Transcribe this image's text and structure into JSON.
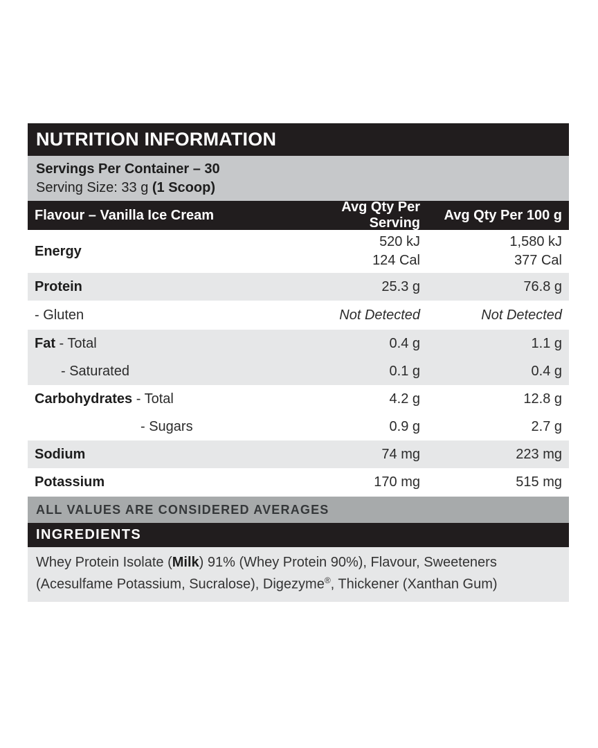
{
  "colors": {
    "bar_black": "#211d1e",
    "servings_gray": "#c6c8ca",
    "row_gray": "#e6e7e8",
    "note_gray": "#a7aaab"
  },
  "label": {
    "title": "NUTRITION INFORMATION",
    "servings_per_container": "Servings Per Container – 30",
    "serving_size_prefix": "Serving Size: 33 g ",
    "serving_size_bold": "(1 Scoop)",
    "columns": {
      "flavour": "Flavour – Vanilla Ice Cream",
      "per_serving": "Avg Qty Per Serving",
      "per_100g": "Avg Qty Per 100 g"
    },
    "rows": [
      {
        "label_bold": "Energy",
        "label_rest": "",
        "per_serving": "520 kJ\n124 Cal",
        "per_100g": "1,580 kJ\n377 Cal"
      },
      {
        "label_bold": "Protein",
        "label_rest": "",
        "per_serving": "25.3 g",
        "per_100g": "76.8 g"
      },
      {
        "label_bold": "",
        "label_rest": "- Gluten",
        "per_serving": "Not Detected",
        "per_100g": "Not Detected"
      },
      {
        "label_bold": "Fat",
        "label_rest": " - Total",
        "per_serving": "0.4 g",
        "per_100g": "1.1 g"
      },
      {
        "label_bold": "",
        "label_rest": "- Saturated",
        "per_serving": "0.1 g",
        "per_100g": "0.4 g"
      },
      {
        "label_bold": "Carbohydrates",
        "label_rest": " - Total",
        "per_serving": "4.2 g",
        "per_100g": "12.8 g"
      },
      {
        "label_bold": "",
        "label_rest": "- Sugars",
        "per_serving": "0.9 g",
        "per_100g": "2.7 g"
      },
      {
        "label_bold": "Sodium",
        "label_rest": "",
        "per_serving": "74 mg",
        "per_100g": "223 mg"
      },
      {
        "label_bold": "Potassium",
        "label_rest": "",
        "per_serving": "170 mg",
        "per_100g": "515 mg"
      }
    ],
    "note": "ALL VALUES ARE CONSIDERED AVERAGES",
    "ingredients_title": "INGREDIENTS",
    "ingredients": {
      "part1": "Whey Protein Isolate (",
      "bold1": "Milk",
      "part2": ") 91% (Whey Protein 90%), Flavour, Sweeteners (Acesulfame Potassium, Sucralose), Digezyme",
      "sup": "®",
      "part3": ", Thickener (Xanthan Gum)"
    }
  }
}
